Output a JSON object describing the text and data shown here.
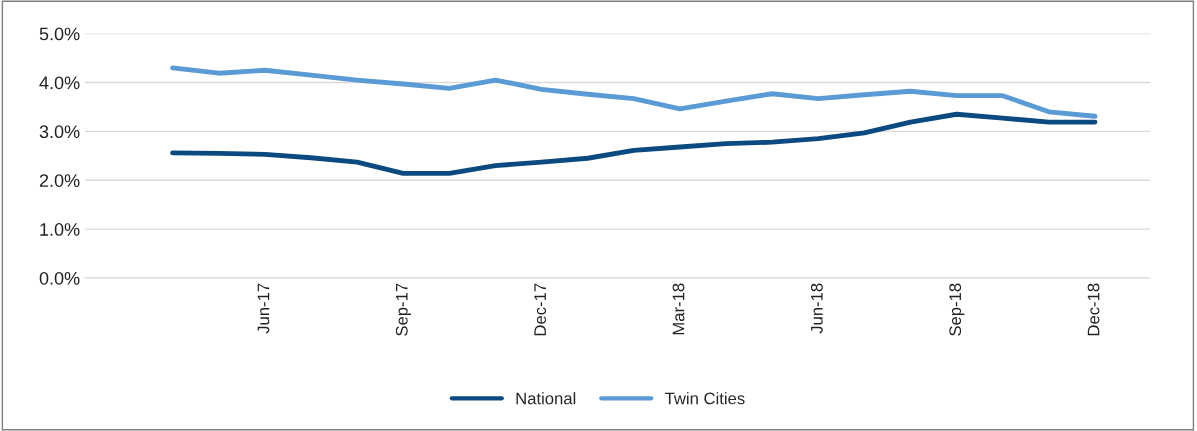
{
  "chart_data": {
    "type": "line",
    "categories": [
      null,
      null,
      "Jun-17",
      null,
      null,
      "Sep-17",
      null,
      null,
      "Dec-17",
      null,
      null,
      "Mar-18",
      null,
      null,
      "Jun-18",
      null,
      null,
      "Sep-18",
      null,
      null,
      "Dec-18"
    ],
    "series": [
      {
        "name": "National",
        "color": "#0b4a80",
        "values": [
          2.56,
          2.55,
          2.53,
          2.46,
          2.37,
          2.14,
          2.14,
          2.3,
          2.37,
          2.45,
          2.61,
          2.68,
          2.75,
          2.78,
          2.85,
          2.97,
          3.19,
          3.35,
          3.27,
          3.19,
          3.19
        ]
      },
      {
        "name": "Twin Cities",
        "color": "#5b9bd5",
        "values": [
          4.3,
          4.19,
          4.25,
          4.15,
          4.05,
          3.97,
          3.88,
          4.05,
          3.86,
          3.76,
          3.67,
          3.46,
          3.62,
          3.77,
          3.67,
          3.75,
          3.82,
          3.73,
          3.73,
          3.4,
          3.31
        ]
      }
    ],
    "ylim": [
      0,
      5
    ],
    "yticks": [
      {
        "value": 0,
        "label": "0.0%"
      },
      {
        "value": 1,
        "label": "1.0%"
      },
      {
        "value": 2,
        "label": "2.0%"
      },
      {
        "value": 3,
        "label": "3.0%"
      },
      {
        "value": 4,
        "label": "4.0%"
      },
      {
        "value": 5,
        "label": "5.0%"
      }
    ],
    "grid": "y",
    "legend": "bottom",
    "marker": "none",
    "line_style": "solid"
  }
}
